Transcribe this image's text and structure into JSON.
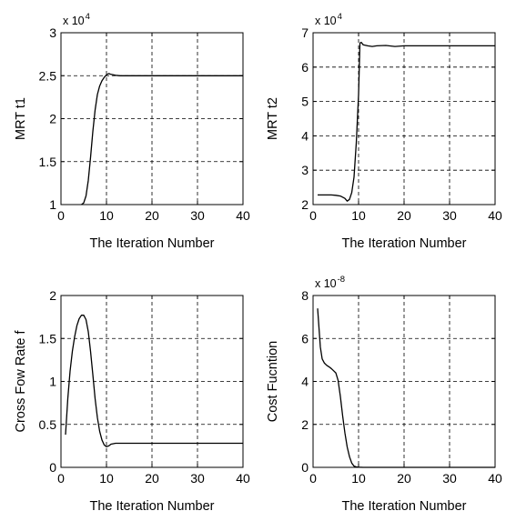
{
  "chart_data": [
    {
      "type": "line",
      "title": "",
      "xlabel": "The Iteration Number",
      "ylabel": "MRT t1",
      "multiplier": {
        "base": "x 10",
        "exp": "4"
      },
      "xlim": [
        0,
        40
      ],
      "ylim": [
        1,
        3
      ],
      "xticks": [
        0,
        10,
        20,
        30,
        40
      ],
      "yticks": [
        1,
        1.5,
        2,
        2.5,
        3
      ],
      "xtick_labels": [
        "0",
        "10",
        "20",
        "30",
        "40"
      ],
      "ytick_labels": [
        "1",
        "1.5",
        "2",
        "2.5",
        "3"
      ],
      "grid": true,
      "series": [
        {
          "x": [
            4.5,
            5,
            5.5,
            6,
            6.5,
            7,
            7.5,
            8,
            8.5,
            9,
            9.5,
            10,
            10.5,
            11,
            12,
            13,
            15,
            20,
            30,
            40
          ],
          "y": [
            1.0,
            1.02,
            1.1,
            1.28,
            1.55,
            1.85,
            2.1,
            2.28,
            2.38,
            2.44,
            2.48,
            2.51,
            2.525,
            2.515,
            2.505,
            2.5,
            2.5,
            2.5,
            2.5,
            2.5
          ]
        }
      ]
    },
    {
      "type": "line",
      "title": "",
      "xlabel": "The Iteration Number",
      "ylabel": "MRT t2",
      "multiplier": {
        "base": "x 10",
        "exp": "4"
      },
      "xlim": [
        0,
        40
      ],
      "ylim": [
        2,
        7
      ],
      "xticks": [
        0,
        10,
        20,
        30,
        40
      ],
      "yticks": [
        2,
        3,
        4,
        5,
        6,
        7
      ],
      "xtick_labels": [
        "0",
        "10",
        "20",
        "30",
        "40"
      ],
      "ytick_labels": [
        "2",
        "3",
        "4",
        "5",
        "6",
        "7"
      ],
      "grid": true,
      "series": [
        {
          "x": [
            1,
            2,
            3,
            4,
            5,
            6,
            7,
            7.5,
            8,
            8.5,
            9,
            9.5,
            10,
            10.3,
            10.6,
            11,
            12,
            13,
            14,
            16,
            18,
            20,
            30,
            40
          ],
          "y": [
            2.28,
            2.28,
            2.28,
            2.28,
            2.27,
            2.25,
            2.18,
            2.1,
            2.15,
            2.35,
            2.8,
            3.8,
            5.2,
            6.7,
            6.72,
            6.65,
            6.62,
            6.6,
            6.62,
            6.63,
            6.6,
            6.62,
            6.62,
            6.62
          ]
        }
      ]
    },
    {
      "type": "line",
      "title": "",
      "xlabel": "The Iteration Number",
      "ylabel": "Cross Fow Rate f",
      "multiplier": null,
      "xlim": [
        0,
        40
      ],
      "ylim": [
        0,
        2
      ],
      "xticks": [
        0,
        10,
        20,
        30,
        40
      ],
      "yticks": [
        0,
        0.5,
        1,
        1.5,
        2
      ],
      "xtick_labels": [
        "0",
        "10",
        "20",
        "30",
        "40"
      ],
      "ytick_labels": [
        "0",
        "0.5",
        "1",
        "1.5",
        "2"
      ],
      "grid": true,
      "series": [
        {
          "x": [
            1,
            1.5,
            2,
            2.5,
            3,
            3.5,
            4,
            4.5,
            5,
            5.5,
            6,
            6.5,
            7,
            7.5,
            8,
            8.5,
            9,
            9.5,
            10,
            10.5,
            11,
            12,
            15,
            20,
            30,
            40
          ],
          "y": [
            0.38,
            0.8,
            1.12,
            1.35,
            1.52,
            1.65,
            1.73,
            1.77,
            1.77,
            1.72,
            1.58,
            1.35,
            1.08,
            0.8,
            0.58,
            0.42,
            0.32,
            0.26,
            0.24,
            0.25,
            0.27,
            0.28,
            0.28,
            0.28,
            0.28,
            0.28
          ]
        }
      ]
    },
    {
      "type": "line",
      "title": "",
      "xlabel": "The Iteration Number",
      "ylabel": "Cost Fucntion",
      "multiplier": {
        "base": "x 10",
        "exp": "-8"
      },
      "xlim": [
        0,
        40
      ],
      "ylim": [
        0,
        8
      ],
      "xticks": [
        0,
        10,
        20,
        30,
        40
      ],
      "yticks": [
        0,
        2,
        4,
        6,
        8
      ],
      "xtick_labels": [
        "0",
        "10",
        "20",
        "30",
        "40"
      ],
      "ytick_labels": [
        "0",
        "2",
        "4",
        "6",
        "8"
      ],
      "grid": true,
      "series": [
        {
          "x": [
            1,
            1.3,
            1.6,
            2,
            2.5,
            3,
            3.5,
            4,
            4.5,
            5,
            5.5,
            6,
            6.5,
            7,
            7.5,
            8,
            8.5,
            9,
            9.5,
            10,
            11,
            12,
            15,
            20,
            30,
            40
          ],
          "y": [
            7.4,
            6.5,
            5.6,
            5.05,
            4.85,
            4.75,
            4.68,
            4.6,
            4.5,
            4.4,
            4.05,
            3.3,
            2.4,
            1.6,
            0.95,
            0.5,
            0.2,
            0.06,
            0.02,
            0.01,
            0.0,
            0.0,
            0.0,
            0.0,
            0.0,
            0.0
          ]
        }
      ]
    }
  ]
}
